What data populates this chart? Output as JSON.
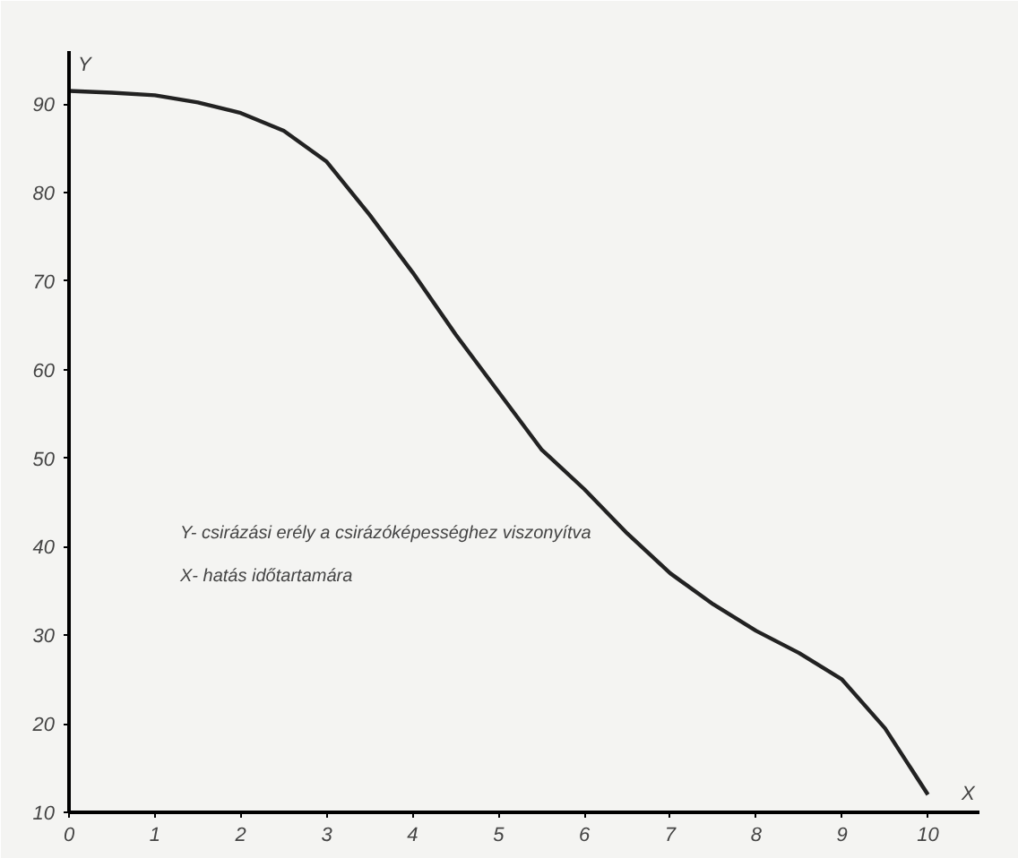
{
  "chart_data": {
    "type": "line",
    "xlabel": "X",
    "ylabel": "Y",
    "x": [
      0,
      0.5,
      1,
      1.5,
      2,
      2.5,
      3,
      3.5,
      4,
      4.5,
      5,
      5.5,
      6,
      6.5,
      7,
      7.5,
      8,
      8.5,
      9,
      9.5,
      10
    ],
    "series": [
      {
        "color": "#222222",
        "values": [
          91.5,
          91.3,
          91,
          90.2,
          89,
          87,
          83.5,
          77.5,
          71,
          64,
          57.5,
          51,
          46.5,
          41.5,
          37,
          33.5,
          30.5,
          28,
          25,
          19.5,
          12
        ]
      }
    ],
    "xlim": [
      0,
      10.6
    ],
    "ylim": [
      10,
      96
    ],
    "xticks": [
      0,
      1,
      2,
      3,
      4,
      5,
      6,
      7,
      8,
      9,
      10
    ],
    "yticks": [
      10,
      20,
      30,
      40,
      50,
      60,
      70,
      80,
      90
    ],
    "grid": false,
    "marker": "none",
    "line_style": "solid",
    "annotations": [
      "Y- csirázási erély a csirázóképességhez viszonyítva",
      "X- hatás időtartamára"
    ]
  }
}
